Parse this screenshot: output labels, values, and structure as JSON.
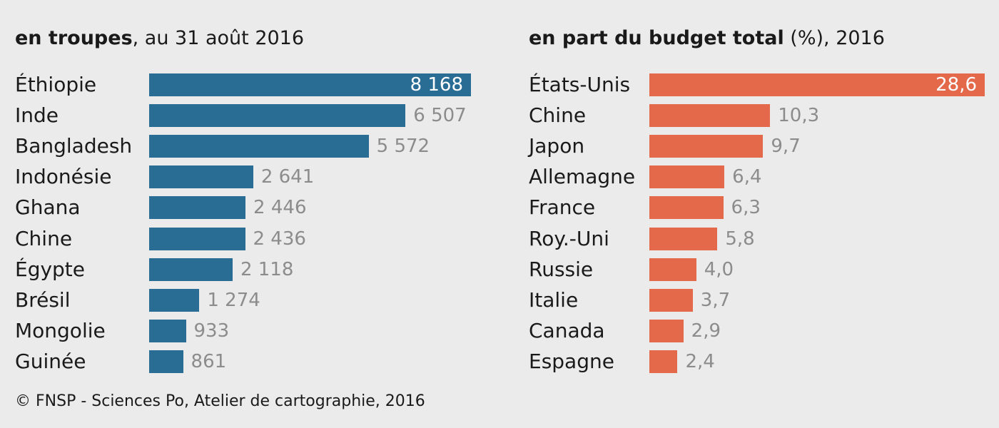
{
  "source": "© FNSP - Sciences Po, Atelier de cartographie, 2016",
  "chart_data": [
    {
      "type": "bar",
      "orientation": "horizontal",
      "title_bold": "en troupes",
      "title_rest": ", au 31 août 2016",
      "color": "#2a6d94",
      "xlim": [
        0,
        8168
      ],
      "categories": [
        "Éthiopie",
        "Inde",
        "Bangladesh",
        "Indonésie",
        "Ghana",
        "Chine",
        "Égypte",
        "Brésil",
        "Mongolie",
        "Guinée"
      ],
      "values": [
        8168,
        6507,
        5572,
        2641,
        2446,
        2436,
        2118,
        1274,
        933,
        861
      ],
      "value_labels": [
        "8 168",
        "6 507",
        "5 572",
        "2 641",
        "2 446",
        "2 436",
        "2 118",
        "1 274",
        "933",
        "861"
      ]
    },
    {
      "type": "bar",
      "orientation": "horizontal",
      "title_bold": "en part du budget total",
      "title_rest": " (%), 2016",
      "color": "#e4694a",
      "xlim": [
        0,
        28.6
      ],
      "categories": [
        "États-Unis",
        "Chine",
        "Japon",
        "Allemagne",
        "France",
        "Roy.-Uni",
        "Russie",
        "Italie",
        "Canada",
        "Espagne"
      ],
      "values": [
        28.6,
        10.3,
        9.7,
        6.4,
        6.3,
        5.8,
        4.0,
        3.7,
        2.9,
        2.4
      ],
      "value_labels": [
        "28,6",
        "10,3",
        "9,7",
        "6,4",
        "6,3",
        "5,8",
        "4,0",
        "3,7",
        "2,9",
        "2,4"
      ]
    }
  ]
}
